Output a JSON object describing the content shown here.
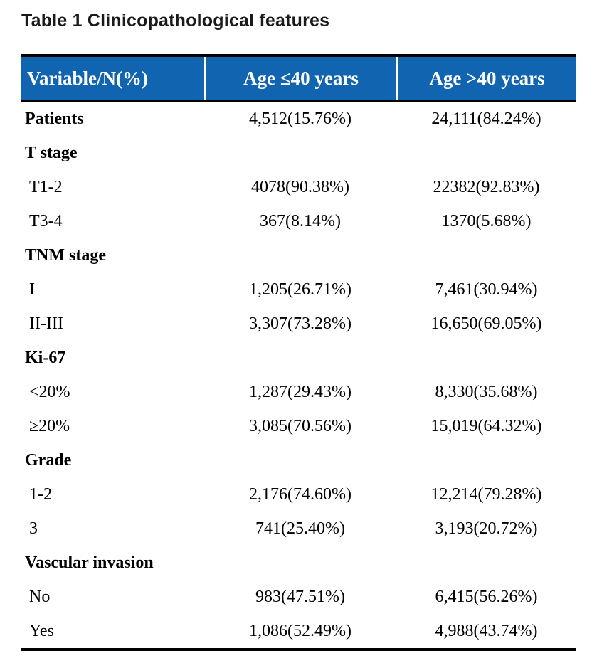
{
  "title": "Table 1 Clinicopathological features",
  "colors": {
    "header_background": "#1165b0",
    "header_text": "#ffffff",
    "rule": "#000000",
    "body_text": "#000000"
  },
  "table": {
    "columns": [
      "Variable/N(%)",
      "Age ≤40 years",
      "Age >40 years"
    ],
    "rows": [
      {
        "label": "Patients",
        "col1": "4,512(15.76%)",
        "col2": "24,111(84.24%)"
      },
      {
        "label": "T stage",
        "col1": "",
        "col2": ""
      },
      {
        "label": "T1-2",
        "col1": "4078(90.38%)",
        "col2": "22382(92.83%)"
      },
      {
        "label": "T3-4",
        "col1": "367(8.14%)",
        "col2": "1370(5.68%)"
      },
      {
        "label": "TNM stage",
        "col1": "",
        "col2": ""
      },
      {
        "label": "I",
        "col1": "1,205(26.71%)",
        "col2": "7,461(30.94%)"
      },
      {
        "label": "II-III",
        "col1": "3,307(73.28%)",
        "col2": "16,650(69.05%)"
      },
      {
        "label": "Ki-67",
        "col1": "",
        "col2": ""
      },
      {
        "label": "<20%",
        "col1": "1,287(29.43%)",
        "col2": "8,330(35.68%)"
      },
      {
        "label": "≥20%",
        "col1": "3,085(70.56%)",
        "col2": "15,019(64.32%)"
      },
      {
        "label": "Grade",
        "col1": "",
        "col2": ""
      },
      {
        "label": "1-2",
        "col1": "2,176(74.60%)",
        "col2": "12,214(79.28%)"
      },
      {
        "label": "3",
        "col1": "741(25.40%)",
        "col2": "3,193(20.72%)"
      },
      {
        "label": "Vascular invasion",
        "col1": "",
        "col2": ""
      },
      {
        "label": "No",
        "col1": "983(47.51%)",
        "col2": "6,415(56.26%)"
      },
      {
        "label": "Yes",
        "col1": "1,086(52.49%)",
        "col2": "4,988(43.74%)"
      }
    ]
  }
}
